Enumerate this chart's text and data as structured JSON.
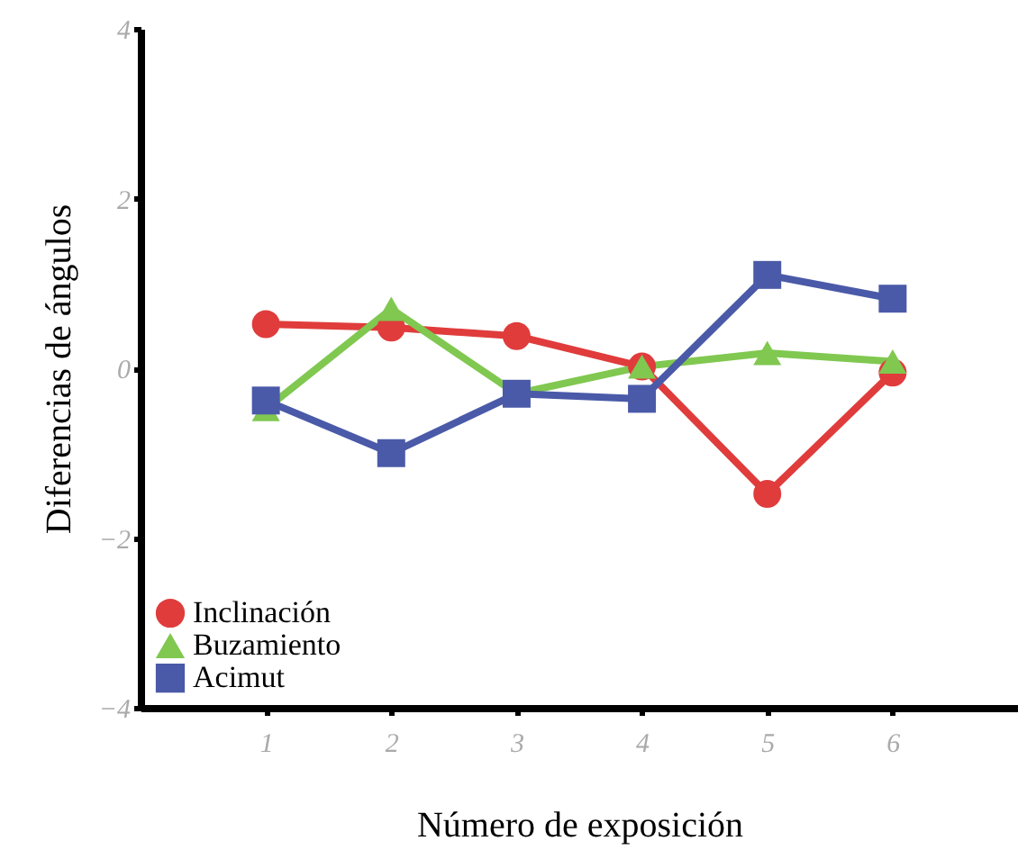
{
  "chart_data": {
    "type": "line",
    "xlabel": "Número de exposición",
    "ylabel": "Diferencias de ángulos",
    "x": [
      1,
      2,
      3,
      4,
      5,
      6
    ],
    "xlim": [
      0,
      7
    ],
    "xticks": [
      1,
      2,
      3,
      4,
      5,
      6
    ],
    "ylim": [
      -4,
      4
    ],
    "yticks": [
      {
        "value": -4,
        "label": "−4"
      },
      {
        "value": -2,
        "label": "−2"
      },
      0,
      2,
      4
    ],
    "grid": false,
    "legend": "bottom left",
    "line_style": "solid",
    "series": [
      {
        "name": "Inclinación",
        "color": "#e03c3c",
        "marker": "circle",
        "values": [
          0.52,
          0.48,
          0.38,
          0.02,
          -1.48,
          -0.05
        ]
      },
      {
        "name": "Buzamiento",
        "color": "#80c850",
        "marker": "triangle",
        "values": [
          -0.48,
          0.7,
          -0.3,
          0.02,
          0.18,
          0.08
        ]
      },
      {
        "name": "Acimut",
        "color": "#4a5aa8",
        "marker": "square",
        "values": [
          -0.38,
          -1.0,
          -0.3,
          -0.36,
          1.1,
          0.82
        ]
      }
    ]
  }
}
